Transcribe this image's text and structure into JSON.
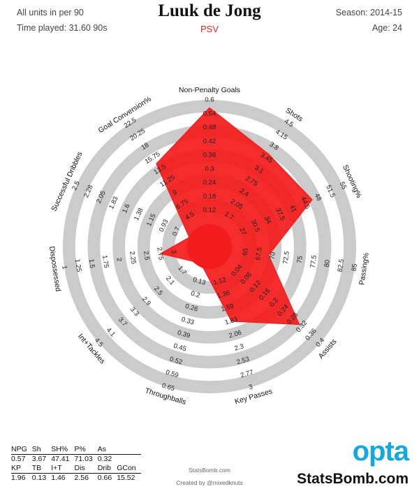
{
  "header": {
    "units_note": "All units in per 90",
    "time_played": "Time played: 31.60 90s",
    "player": "Luuk de Jong",
    "team": "PSV",
    "season": "Season: 2014-15",
    "age": "Age: 24"
  },
  "chart_data": {
    "type": "radar",
    "title": "Luuk de Jong",
    "subtitle": "PSV",
    "axes": [
      {
        "label": "Non-Penalty Goals",
        "ticks": [
          "0.12",
          "0.18",
          "0.24",
          "0.3",
          "0.36",
          "0.42",
          "0.48",
          "0.54",
          "0.6"
        ],
        "value": 0.57
      },
      {
        "label": "Shots",
        "ticks": [
          "1.7",
          "2.05",
          "2.4",
          "2.75",
          "3.1",
          "3.45",
          "3.8",
          "4.15",
          "4.5"
        ],
        "value": 3.67
      },
      {
        "label": "Shooting%",
        "ticks": [
          "27",
          "30.5",
          "34",
          "37.5",
          "41",
          "44.5",
          "48",
          "51.5",
          "55"
        ],
        "value": 47.41
      },
      {
        "label": "Passing%",
        "ticks": [
          "65",
          "67.5",
          "70",
          "72.5",
          "75",
          "77.5",
          "80",
          "82.5",
          "85"
        ],
        "value": 71.03
      },
      {
        "label": "Assists",
        "ticks": [
          "0.04",
          "0.08",
          "0.12",
          "0.16",
          "0.2",
          "0.24",
          "0.28",
          "0.32",
          "0.36",
          "0.4"
        ],
        "value": 0.32
      },
      {
        "label": "Key Passes",
        "ticks": [
          "1.12",
          "1.36",
          "1.59",
          "1.83",
          "2.06",
          "2.3",
          "2.53",
          "2.77",
          "3"
        ],
        "value": 1.96
      },
      {
        "label": "Throughballs",
        "ticks": [
          "0.13",
          "0.2",
          "0.26",
          "0.33",
          "0.39",
          "0.45",
          "0.52",
          "0.59",
          "0.65"
        ],
        "value": 0.13
      },
      {
        "label": "Int+Tackles",
        "ticks": [
          "1.7",
          "2.1",
          "2.5",
          "2.9",
          "3.3",
          "3.7",
          "4.1",
          "4.5"
        ],
        "value": 1.46
      },
      {
        "label": "Dispossessed",
        "ticks": [
          "3",
          "2.75",
          "2.5",
          "2.25",
          "2",
          "1.75",
          "1.5",
          "1.25",
          "1"
        ],
        "value": 2.56
      },
      {
        "label": "Successful Dribbles",
        "ticks": [
          "0.7",
          "0.93",
          "1.15",
          "1.38",
          "1.6",
          "1.83",
          "2.05",
          "2.28",
          "2.5"
        ],
        "value": 0.66
      },
      {
        "label": "Goal Conversion%",
        "ticks": [
          "4.5",
          "6.75",
          "9",
          "11.25",
          "13.5",
          "15.75",
          "18",
          "20.25",
          "22.5"
        ],
        "value": 15.52
      }
    ],
    "color": "#f31a1a",
    "ring_color": "#cbcbcb"
  },
  "stats_table": {
    "row1_headers": [
      "NPG",
      "Sh",
      "SH%",
      "P%",
      "As"
    ],
    "row1_values": [
      "0.57",
      "3.67",
      "47.41",
      "71.03",
      "0.32"
    ],
    "row2_headers": [
      "KP",
      "TB",
      "I+T",
      "Dis",
      "Drib",
      "GCon"
    ],
    "row2_values": [
      "1.96",
      "0.13",
      "1.46",
      "2.56",
      "0.66",
      "15.52"
    ]
  },
  "footer": {
    "source": "StatsBomb.com",
    "credit": "Created by @mixedknuts",
    "opta_logo": "opta",
    "statsbomb_logo": "StatsBomb.com"
  }
}
